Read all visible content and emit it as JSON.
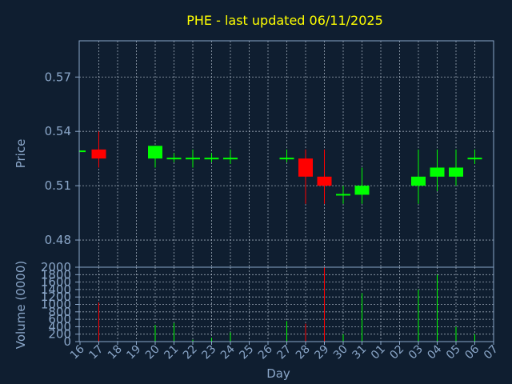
{
  "colors": {
    "background": "#0f1e30",
    "axis": "#8aa6c8",
    "title": "#ffff00",
    "up": "#00ff00",
    "down": "#ff0000",
    "grid": "#c8d2e0"
  },
  "chart_data": {
    "type": "candlestick",
    "title": "PHE - last updated 06/11/2025",
    "xlabel": "Day",
    "grid": true,
    "days": [
      "16",
      "17",
      "18",
      "19",
      "20",
      "21",
      "22",
      "23",
      "24",
      "25",
      "26",
      "27",
      "28",
      "29",
      "30",
      "31",
      "01",
      "02",
      "03",
      "04",
      "05",
      "06",
      "07"
    ],
    "price": {
      "ylabel": "Price",
      "ylim": [
        0.465,
        0.59
      ],
      "yticks": [
        0.48,
        0.51,
        0.54,
        0.57
      ],
      "ytick_labels": [
        "0.48",
        "0.51",
        "0.54",
        "0.57"
      ],
      "candles": [
        {
          "day": "16",
          "open": 0.529,
          "high": 0.529,
          "low": 0.529,
          "close": 0.529
        },
        {
          "day": "17",
          "open": 0.53,
          "high": 0.54,
          "low": 0.52,
          "close": 0.525
        },
        {
          "day": "20",
          "open": 0.525,
          "high": 0.532,
          "low": 0.52,
          "close": 0.532
        },
        {
          "day": "21",
          "open": 0.525,
          "high": 0.528,
          "low": 0.523,
          "close": 0.525
        },
        {
          "day": "22",
          "open": 0.525,
          "high": 0.53,
          "low": 0.52,
          "close": 0.525
        },
        {
          "day": "23",
          "open": 0.525,
          "high": 0.528,
          "low": 0.523,
          "close": 0.525
        },
        {
          "day": "24",
          "open": 0.525,
          "high": 0.53,
          "low": 0.522,
          "close": 0.525
        },
        {
          "day": "27",
          "open": 0.525,
          "high": 0.53,
          "low": 0.523,
          "close": 0.525
        },
        {
          "day": "28",
          "open": 0.525,
          "high": 0.53,
          "low": 0.5,
          "close": 0.515
        },
        {
          "day": "29",
          "open": 0.515,
          "high": 0.53,
          "low": 0.5,
          "close": 0.51
        },
        {
          "day": "30",
          "open": 0.505,
          "high": 0.51,
          "low": 0.5,
          "close": 0.505
        },
        {
          "day": "31",
          "open": 0.505,
          "high": 0.52,
          "low": 0.5,
          "close": 0.51
        },
        {
          "day": "03",
          "open": 0.51,
          "high": 0.53,
          "low": 0.5,
          "close": 0.515
        },
        {
          "day": "04",
          "open": 0.515,
          "high": 0.53,
          "low": 0.507,
          "close": 0.52
        },
        {
          "day": "05",
          "open": 0.515,
          "high": 0.53,
          "low": 0.51,
          "close": 0.52
        },
        {
          "day": "06",
          "open": 0.525,
          "high": 0.53,
          "low": 0.522,
          "close": 0.525
        }
      ]
    },
    "volume": {
      "ylabel": "Volume (0000)",
      "ylim": [
        0,
        2000
      ],
      "yticks": [
        0,
        200,
        400,
        600,
        800,
        1000,
        1200,
        1400,
        1600,
        1800,
        2000
      ],
      "ytick_labels": [
        "0",
        "200",
        "400",
        "600",
        "800",
        "1000",
        "1200",
        "1400",
        "1600",
        "1800",
        "2000"
      ],
      "bars": [
        {
          "day": "17",
          "value": 1050,
          "direction": "down"
        },
        {
          "day": "20",
          "value": 450,
          "direction": "up"
        },
        {
          "day": "21",
          "value": 500,
          "direction": "up"
        },
        {
          "day": "22",
          "value": 50,
          "direction": "up"
        },
        {
          "day": "23",
          "value": 100,
          "direction": "up"
        },
        {
          "day": "24",
          "value": 250,
          "direction": "up"
        },
        {
          "day": "27",
          "value": 550,
          "direction": "up"
        },
        {
          "day": "28",
          "value": 480,
          "direction": "down"
        },
        {
          "day": "29",
          "value": 2000,
          "direction": "down"
        },
        {
          "day": "30",
          "value": 200,
          "direction": "up"
        },
        {
          "day": "31",
          "value": 1300,
          "direction": "up"
        },
        {
          "day": "03",
          "value": 1400,
          "direction": "up"
        },
        {
          "day": "04",
          "value": 1800,
          "direction": "up"
        },
        {
          "day": "05",
          "value": 400,
          "direction": "up"
        },
        {
          "day": "06",
          "value": 200,
          "direction": "up"
        }
      ]
    }
  }
}
